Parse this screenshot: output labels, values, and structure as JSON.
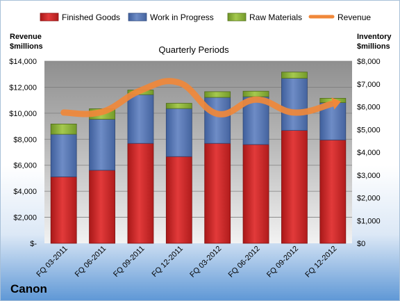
{
  "company": "Canon",
  "chart_data": {
    "type": "bar",
    "stacked": true,
    "title": "Quarterly Periods",
    "categories": [
      "FQ 03-2011",
      "FQ 06-2011",
      "FQ 09-2011",
      "FQ 12-2011",
      "FQ 03-2012",
      "FQ 06-2012",
      "FQ 09-2012",
      "FQ 12-2012"
    ],
    "series": [
      {
        "name": "Finished Goods",
        "axis": "right",
        "color": "#d42a2a",
        "values": [
          2920,
          3210,
          4390,
          3810,
          4390,
          4340,
          4960,
          4540
        ]
      },
      {
        "name": "Work in Progress",
        "axis": "right",
        "color": "#5a7ab8",
        "values": [
          1870,
          2240,
          2140,
          2110,
          2020,
          2100,
          2290,
          1640
        ]
      },
      {
        "name": "Raw Materials",
        "axis": "right",
        "color": "#8fb33a",
        "values": [
          450,
          460,
          200,
          230,
          250,
          240,
          270,
          190
        ]
      },
      {
        "name": "Revenue",
        "axis": "left",
        "type": "line",
        "color": "#f0883a",
        "values": [
          10050,
          10100,
          11750,
          12350,
          9950,
          11050,
          10050,
          10750
        ]
      }
    ],
    "left_axis": {
      "label_line1": "Revenue",
      "label_line2": "$millions",
      "ylim": [
        0,
        14000
      ],
      "ticks": [
        "$-",
        "$2,000",
        "$4,000",
        "$6,000",
        "$8,000",
        "$10,000",
        "$12,000",
        "$14,000"
      ]
    },
    "right_axis": {
      "label_line1": "Inventory",
      "label_line2": "$millions",
      "ylim": [
        0,
        8000
      ],
      "ticks": [
        "$0",
        "$1,000",
        "$2,000",
        "$3,000",
        "$4,000",
        "$5,000",
        "$6,000",
        "$7,000",
        "$8,000"
      ]
    },
    "grid": true,
    "legend": "top"
  }
}
